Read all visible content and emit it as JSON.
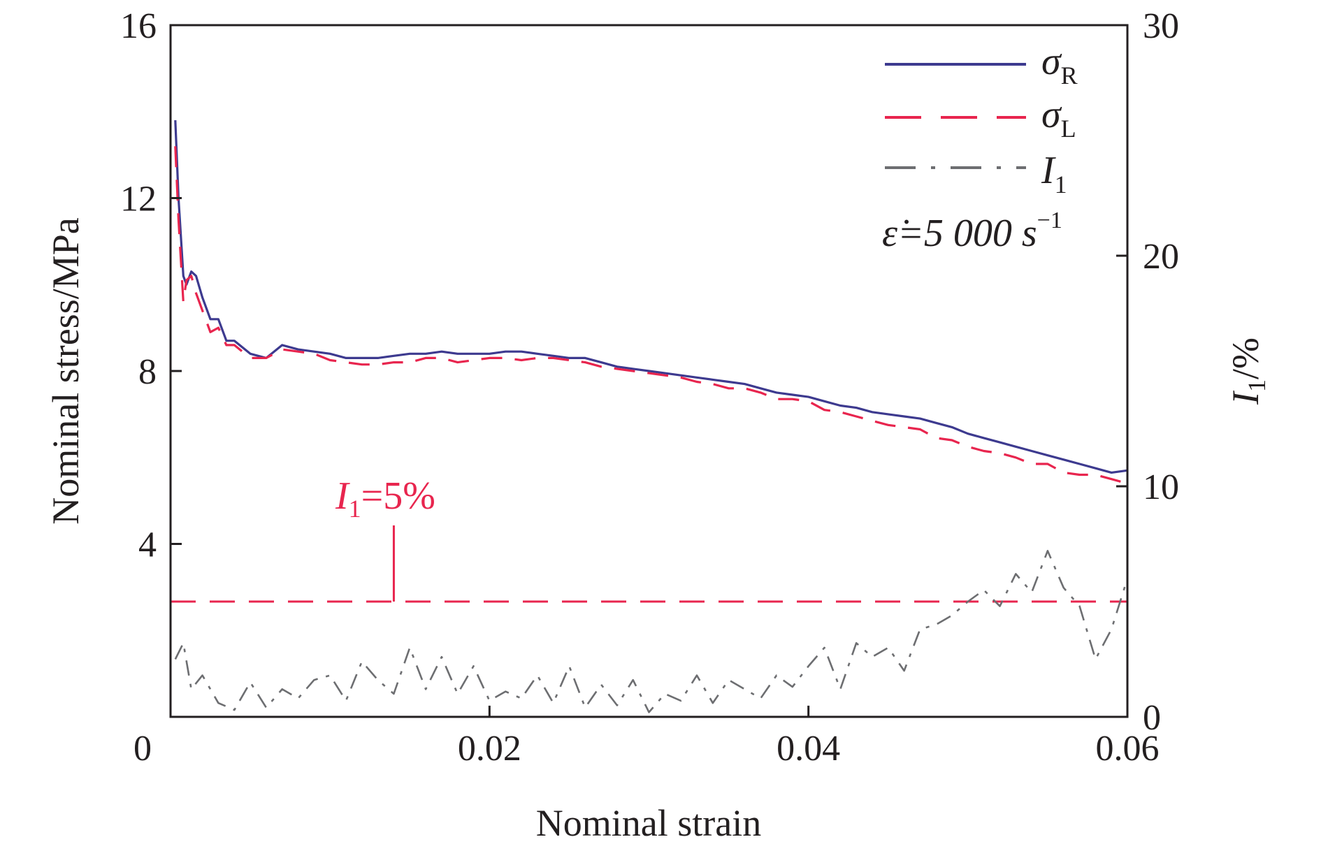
{
  "chart_data": {
    "type": "line",
    "xlabel": "Nominal strain",
    "ylabel_left": "Nominal stress/MPa",
    "ylabel_right_main": "I",
    "ylabel_right_sub": "1",
    "ylabel_right_suffix": "/%",
    "xlim": [
      0,
      0.06
    ],
    "ylim_left": [
      0,
      16
    ],
    "ylim_right": [
      0,
      30
    ],
    "x_ticks": [
      0,
      0.02,
      0.04,
      0.06
    ],
    "x_tick_labels": [
      "0",
      "0.02",
      "0.04",
      "0.06"
    ],
    "y_left_ticks": [
      4,
      8,
      12,
      16
    ],
    "y_left_tick_labels": [
      "4",
      "8",
      "12",
      "16"
    ],
    "y_right_ticks": [
      0,
      10,
      20,
      30
    ],
    "y_right_tick_labels": [
      "0",
      "10",
      "20",
      "30"
    ],
    "grid": false,
    "legend_position": "top-right",
    "legend": [
      {
        "main": "σ",
        "sub": "R",
        "style": "solid",
        "color": "#3d3a8f"
      },
      {
        "main": "σ",
        "sub": "L",
        "style": "dashed",
        "color": "#e8254e"
      },
      {
        "main": "I",
        "sub": "1",
        "style": "dashdot",
        "color": "#6d6e71"
      }
    ],
    "rate_annotation": {
      "main": "ε̇=5 000 s",
      "sup": "−1"
    },
    "threshold_annotation": {
      "main": "I",
      "sub": "1",
      "suffix": "=5%",
      "x": 0.014,
      "value_percent": 5,
      "color": "#e8254e"
    },
    "series": [
      {
        "name": "σR",
        "axis": "left",
        "color": "#3d3a8f",
        "style": "solid",
        "x": [
          0.0003,
          0.0005,
          0.0008,
          0.001,
          0.0013,
          0.0016,
          0.002,
          0.0025,
          0.003,
          0.0035,
          0.004,
          0.005,
          0.006,
          0.007,
          0.008,
          0.009,
          0.01,
          0.011,
          0.012,
          0.013,
          0.014,
          0.015,
          0.016,
          0.017,
          0.018,
          0.019,
          0.02,
          0.021,
          0.022,
          0.023,
          0.024,
          0.025,
          0.026,
          0.027,
          0.028,
          0.029,
          0.03,
          0.031,
          0.032,
          0.033,
          0.034,
          0.035,
          0.036,
          0.037,
          0.038,
          0.039,
          0.04,
          0.041,
          0.042,
          0.043,
          0.044,
          0.045,
          0.046,
          0.047,
          0.048,
          0.049,
          0.05,
          0.051,
          0.052,
          0.053,
          0.054,
          0.055,
          0.056,
          0.057,
          0.058,
          0.059,
          0.06
        ],
        "y": [
          13.8,
          12.0,
          10.2,
          10.0,
          10.3,
          10.2,
          9.7,
          9.2,
          9.2,
          8.7,
          8.7,
          8.4,
          8.3,
          8.6,
          8.5,
          8.45,
          8.4,
          8.3,
          8.3,
          8.3,
          8.35,
          8.4,
          8.4,
          8.45,
          8.4,
          8.4,
          8.4,
          8.45,
          8.45,
          8.4,
          8.35,
          8.3,
          8.3,
          8.2,
          8.1,
          8.05,
          8.0,
          7.95,
          7.9,
          7.85,
          7.8,
          7.75,
          7.7,
          7.6,
          7.5,
          7.45,
          7.4,
          7.3,
          7.2,
          7.15,
          7.05,
          7.0,
          6.95,
          6.9,
          6.8,
          6.7,
          6.55,
          6.45,
          6.35,
          6.25,
          6.15,
          6.05,
          5.95,
          5.85,
          5.75,
          5.65,
          5.7
        ]
      },
      {
        "name": "σL",
        "axis": "left",
        "color": "#e8254e",
        "style": "dashed",
        "x": [
          0.0003,
          0.0005,
          0.0008,
          0.001,
          0.0013,
          0.0016,
          0.002,
          0.0025,
          0.003,
          0.0035,
          0.004,
          0.005,
          0.006,
          0.007,
          0.008,
          0.009,
          0.01,
          0.011,
          0.012,
          0.013,
          0.014,
          0.015,
          0.016,
          0.017,
          0.018,
          0.019,
          0.02,
          0.021,
          0.022,
          0.023,
          0.024,
          0.025,
          0.026,
          0.027,
          0.028,
          0.029,
          0.03,
          0.031,
          0.032,
          0.033,
          0.034,
          0.035,
          0.036,
          0.037,
          0.038,
          0.039,
          0.04,
          0.041,
          0.042,
          0.043,
          0.044,
          0.045,
          0.046,
          0.047,
          0.048,
          0.049,
          0.05,
          0.051,
          0.052,
          0.053,
          0.054,
          0.055,
          0.056,
          0.057,
          0.058,
          0.059,
          0.06
        ],
        "y": [
          13.2,
          11.5,
          9.6,
          10.1,
          10.2,
          9.8,
          9.4,
          8.9,
          9.0,
          8.6,
          8.6,
          8.3,
          8.3,
          8.5,
          8.45,
          8.4,
          8.25,
          8.2,
          8.15,
          8.15,
          8.2,
          8.2,
          8.3,
          8.3,
          8.2,
          8.25,
          8.3,
          8.3,
          8.25,
          8.3,
          8.3,
          8.25,
          8.2,
          8.1,
          8.05,
          8.0,
          7.95,
          7.9,
          7.85,
          7.75,
          7.7,
          7.6,
          7.6,
          7.5,
          7.35,
          7.35,
          7.3,
          7.1,
          7.05,
          6.95,
          6.85,
          6.75,
          6.7,
          6.65,
          6.45,
          6.4,
          6.25,
          6.15,
          6.1,
          6.0,
          5.85,
          5.85,
          5.65,
          5.6,
          5.6,
          5.5,
          5.4
        ]
      },
      {
        "name": "I1",
        "axis": "right",
        "color": "#6d6e71",
        "style": "dashdot",
        "x": [
          0.0003,
          0.0008,
          0.0013,
          0.002,
          0.003,
          0.004,
          0.005,
          0.006,
          0.007,
          0.008,
          0.009,
          0.01,
          0.011,
          0.012,
          0.013,
          0.014,
          0.015,
          0.016,
          0.017,
          0.018,
          0.019,
          0.02,
          0.021,
          0.022,
          0.023,
          0.024,
          0.025,
          0.026,
          0.027,
          0.028,
          0.029,
          0.03,
          0.031,
          0.032,
          0.033,
          0.034,
          0.035,
          0.036,
          0.037,
          0.038,
          0.039,
          0.04,
          0.041,
          0.042,
          0.043,
          0.044,
          0.045,
          0.046,
          0.047,
          0.048,
          0.049,
          0.05,
          0.051,
          0.052,
          0.053,
          0.054,
          0.055,
          0.056,
          0.057,
          0.058,
          0.059,
          0.06
        ],
        "y": [
          2.5,
          3.2,
          1.2,
          1.8,
          0.6,
          0.3,
          1.5,
          0.4,
          1.2,
          0.8,
          1.6,
          1.8,
          0.7,
          2.4,
          1.6,
          1.0,
          3.0,
          1.2,
          2.6,
          1.0,
          2.2,
          0.7,
          1.1,
          0.8,
          1.8,
          0.6,
          2.2,
          0.4,
          1.4,
          0.5,
          1.6,
          0.2,
          1.0,
          0.7,
          1.8,
          0.6,
          1.6,
          1.2,
          0.8,
          1.8,
          1.3,
          2.2,
          3.0,
          1.2,
          3.2,
          2.6,
          3.0,
          2.0,
          3.8,
          4.0,
          4.4,
          5.0,
          5.5,
          4.8,
          6.2,
          5.4,
          7.2,
          5.6,
          4.8,
          2.5,
          3.8,
          6.0
        ]
      }
    ],
    "threshold_line": {
      "axis": "right",
      "value": 5,
      "color": "#e8254e",
      "style": "dashed"
    }
  }
}
